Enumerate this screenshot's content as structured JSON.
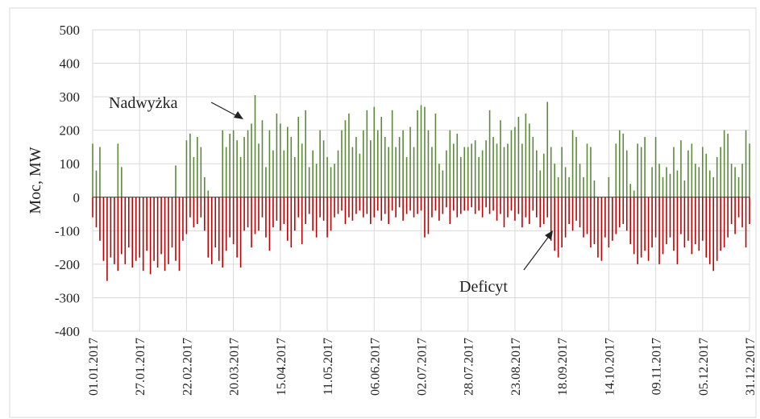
{
  "chart_data": {
    "type": "bar",
    "y_label": "Moc, MW",
    "annotations": [
      "Nadwyżka",
      "Deficyt"
    ],
    "categories": [
      "01.01.2017",
      null,
      null,
      null,
      null,
      null,
      null,
      null,
      null,
      null,
      null,
      null,
      null,
      "27.01.2017",
      null,
      null,
      null,
      null,
      null,
      null,
      null,
      null,
      null,
      null,
      null,
      null,
      "22.02.2017",
      null,
      null,
      null,
      null,
      null,
      null,
      null,
      null,
      null,
      null,
      null,
      null,
      "20.03.2017",
      null,
      null,
      null,
      null,
      null,
      null,
      null,
      null,
      null,
      null,
      null,
      null,
      "15.04.2017",
      null,
      null,
      null,
      null,
      null,
      null,
      null,
      null,
      null,
      null,
      null,
      null,
      "11.05.2017",
      null,
      null,
      null,
      null,
      null,
      null,
      null,
      null,
      null,
      null,
      null,
      null,
      "06.06.2017",
      null,
      null,
      null,
      null,
      null,
      null,
      null,
      null,
      null,
      null,
      null,
      null,
      "02.07.2017",
      null,
      null,
      null,
      null,
      null,
      null,
      null,
      null,
      null,
      null,
      null,
      null,
      "28.07.2017",
      null,
      null,
      null,
      null,
      null,
      null,
      null,
      null,
      null,
      null,
      null,
      null,
      "23.08.2017",
      null,
      null,
      null,
      null,
      null,
      null,
      null,
      null,
      null,
      null,
      null,
      null,
      "18.09.2017",
      null,
      null,
      null,
      null,
      null,
      null,
      null,
      null,
      null,
      null,
      null,
      null,
      "14.10.2017",
      null,
      null,
      null,
      null,
      null,
      null,
      null,
      null,
      null,
      null,
      null,
      null,
      "09.11.2017",
      null,
      null,
      null,
      null,
      null,
      null,
      null,
      null,
      null,
      null,
      null,
      null,
      "05.12.2017",
      null,
      null,
      null,
      null,
      null,
      null,
      null,
      null,
      null,
      null,
      null,
      null,
      "31.12.2017"
    ],
    "series": [
      {
        "color": "#5b8a3a",
        "values": [
          160,
          80,
          150,
          0,
          0,
          0,
          0,
          160,
          90,
          0,
          0,
          0,
          0,
          0,
          0,
          0,
          0,
          0,
          0,
          0,
          0,
          0,
          0,
          95,
          0,
          0,
          170,
          190,
          120,
          180,
          150,
          60,
          20,
          0,
          0,
          0,
          200,
          150,
          190,
          200,
          170,
          120,
          180,
          200,
          220,
          305,
          160,
          230,
          90,
          200,
          140,
          250,
          220,
          140,
          210,
          180,
          120,
          240,
          160,
          260,
          90,
          140,
          100,
          200,
          170,
          120,
          90,
          100,
          140,
          200,
          230,
          250,
          150,
          180,
          130,
          200,
          260,
          170,
          270,
          200,
          240,
          180,
          150,
          260,
          150,
          180,
          200,
          120,
          210,
          150,
          260,
          275,
          270,
          200,
          150,
          250,
          100,
          80,
          140,
          200,
          160,
          190,
          120,
          150,
          150,
          160,
          170,
          120,
          140,
          170,
          260,
          180,
          160,
          230,
          150,
          160,
          200,
          210,
          240,
          160,
          250,
          220,
          180,
          140,
          80,
          130,
          285,
          150,
          100,
          60,
          150,
          90,
          60,
          200,
          180,
          100,
          60,
          160,
          150,
          50,
          0,
          0,
          0,
          60,
          0,
          160,
          200,
          190,
          140,
          40,
          20,
          160,
          150,
          180,
          0,
          90,
          180,
          100,
          60,
          90,
          70,
          150,
          80,
          170,
          50,
          140,
          160,
          100,
          90,
          150,
          130,
          80,
          60,
          120,
          150,
          200,
          190,
          100,
          90,
          60,
          100,
          200,
          160
        ]
      },
      {
        "color": "#c00000",
        "values": [
          -60,
          -90,
          -130,
          -190,
          -250,
          -180,
          -200,
          -220,
          -170,
          -200,
          -150,
          -210,
          -190,
          -180,
          -220,
          -160,
          -230,
          -190,
          -210,
          -170,
          -220,
          -200,
          -150,
          -190,
          -220,
          -130,
          -110,
          -60,
          -90,
          -80,
          -60,
          -100,
          -180,
          -200,
          -150,
          -190,
          -210,
          -160,
          -120,
          -140,
          -180,
          -210,
          -100,
          -90,
          -150,
          -110,
          -100,
          -60,
          -120,
          -160,
          -90,
          -70,
          -100,
          -80,
          -130,
          -150,
          -100,
          -60,
          -140,
          -80,
          -50,
          -100,
          -120,
          -60,
          -70,
          -120,
          -100,
          -60,
          -50,
          -40,
          -80,
          -60,
          -70,
          -50,
          -40,
          -60,
          -50,
          -80,
          -60,
          -40,
          -70,
          -50,
          -80,
          -40,
          -60,
          -30,
          -70,
          -50,
          -40,
          -60,
          -50,
          -40,
          -120,
          -110,
          -60,
          -40,
          -70,
          -50,
          -30,
          -80,
          -40,
          -60,
          -50,
          -40,
          -40,
          -30,
          -50,
          -40,
          -60,
          -30,
          -50,
          -40,
          -70,
          -50,
          -90,
          -60,
          -40,
          -70,
          -50,
          -90,
          -60,
          -80,
          -40,
          -60,
          -90,
          -80,
          -60,
          -130,
          -160,
          -180,
          -150,
          -120,
          -80,
          -100,
          -70,
          -90,
          -120,
          -110,
          -150,
          -140,
          -180,
          -190,
          -120,
          -150,
          -130,
          -110,
          -90,
          -80,
          -100,
          -140,
          -170,
          -200,
          -180,
          -160,
          -190,
          -150,
          -120,
          -200,
          -170,
          -140,
          -120,
          -160,
          -200,
          -110,
          -150,
          -130,
          -170,
          -140,
          -160,
          -130,
          -180,
          -200,
          -220,
          -190,
          -160,
          -150,
          -120,
          -80,
          -110,
          -60,
          -90,
          -150,
          -80
        ]
      }
    ],
    "ylim": [
      -400,
      500
    ],
    "yticks": [
      -400,
      -300,
      -200,
      -100,
      0,
      100,
      200,
      300,
      400,
      500
    ],
    "grid": true
  }
}
